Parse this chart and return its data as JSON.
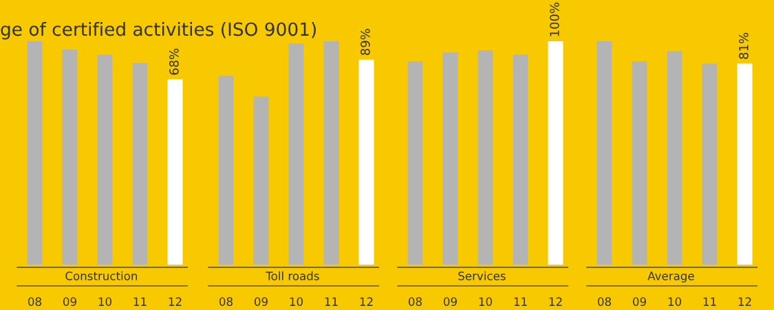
{
  "chart_data": [
    {
      "type": "bar",
      "title": "ge of certified activities (ISO 9001)",
      "xlabel": "Construction",
      "categories": [
        "08",
        "09",
        "10",
        "11",
        "12"
      ],
      "values": [
        82,
        79,
        77,
        74,
        68
      ],
      "colors": [
        "#b4b4b4",
        "#b4b4b4",
        "#b4b4b4",
        "#b4b4b4",
        "#ffffff"
      ],
      "value_labels": [
        null,
        null,
        null,
        null,
        "68%"
      ],
      "tick_labels": "x",
      "grid": false,
      "legend": false
    },
    {
      "type": "bar",
      "xlabel": "Toll roads",
      "categories": [
        "08",
        "09",
        "10",
        "11",
        "12"
      ],
      "values": [
        82,
        73,
        96,
        97,
        89
      ],
      "colors": [
        "#b4b4b4",
        "#b4b4b4",
        "#b4b4b4",
        "#b4b4b4",
        "#ffffff"
      ],
      "value_labels": [
        null,
        null,
        null,
        null,
        "89%"
      ],
      "tick_labels": "x",
      "grid": false,
      "legend": false
    },
    {
      "type": "bar",
      "xlabel": "Services",
      "categories": [
        "08",
        "09",
        "10",
        "11",
        "12"
      ],
      "values": [
        91,
        95,
        96,
        94,
        100
      ],
      "colors": [
        "#b4b4b4",
        "#b4b4b4",
        "#b4b4b4",
        "#b4b4b4",
        "#ffffff"
      ],
      "value_labels": [
        null,
        null,
        null,
        null,
        "100%"
      ],
      "tick_labels": "x",
      "grid": false,
      "legend": false
    },
    {
      "type": "bar",
      "xlabel": "Average",
      "categories": [
        "08",
        "09",
        "10",
        "11",
        "12"
      ],
      "values": [
        90,
        82,
        86,
        81,
        81
      ],
      "colors": [
        "#b4b4b4",
        "#b4b4b4",
        "#b4b4b4",
        "#b4b4b4",
        "#ffffff"
      ],
      "value_labels": [
        null,
        null,
        null,
        null,
        "81%"
      ],
      "tick_labels": "x",
      "grid": false,
      "legend": false
    }
  ]
}
